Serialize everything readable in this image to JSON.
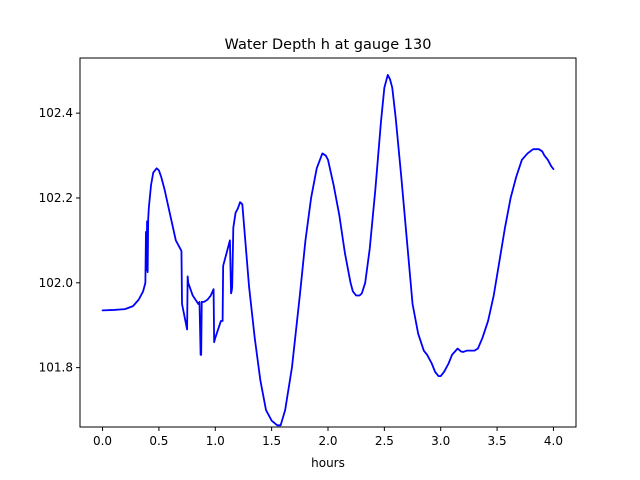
{
  "chart_data": {
    "type": "line",
    "title": "Water Depth h at gauge 130",
    "xlabel": "hours",
    "ylabel": "",
    "xlim": [
      -0.2,
      4.2
    ],
    "ylim": [
      101.66,
      102.53
    ],
    "x_ticks": [
      {
        "value": 0.0,
        "label": "0.0"
      },
      {
        "value": 0.5,
        "label": "0.5"
      },
      {
        "value": 1.0,
        "label": "1.0"
      },
      {
        "value": 1.5,
        "label": "1.5"
      },
      {
        "value": 2.0,
        "label": "2.0"
      },
      {
        "value": 2.5,
        "label": "2.5"
      },
      {
        "value": 3.0,
        "label": "3.0"
      },
      {
        "value": 3.5,
        "label": "3.5"
      },
      {
        "value": 4.0,
        "label": "4.0"
      }
    ],
    "y_ticks": [
      {
        "value": 101.8,
        "label": "101.8"
      },
      {
        "value": 102.0,
        "label": "102.0"
      },
      {
        "value": 102.2,
        "label": "102.2"
      },
      {
        "value": 102.4,
        "label": "102.4"
      }
    ],
    "grid": false,
    "series": [
      {
        "color": "#0000ff",
        "x": [
          0.0,
          0.1,
          0.2,
          0.27,
          0.32,
          0.36,
          0.38,
          0.385,
          0.39,
          0.395,
          0.4,
          0.405,
          0.41,
          0.43,
          0.45,
          0.48,
          0.5,
          0.52,
          0.55,
          0.6,
          0.65,
          0.7,
          0.705,
          0.72,
          0.75,
          0.755,
          0.76,
          0.8,
          0.85,
          0.86,
          0.87,
          0.875,
          0.88,
          0.9,
          0.93,
          0.96,
          0.985,
          0.99,
          1.0,
          1.05,
          1.065,
          1.07,
          1.1,
          1.13,
          1.14,
          1.145,
          1.15,
          1.16,
          1.18,
          1.2,
          1.22,
          1.24,
          1.26,
          1.3,
          1.35,
          1.4,
          1.45,
          1.5,
          1.55,
          1.58,
          1.62,
          1.68,
          1.75,
          1.8,
          1.85,
          1.9,
          1.95,
          1.98,
          2.0,
          2.05,
          2.1,
          2.15,
          2.2,
          2.22,
          2.25,
          2.28,
          2.3,
          2.33,
          2.37,
          2.42,
          2.47,
          2.5,
          2.53,
          2.55,
          2.57,
          2.6,
          2.65,
          2.7,
          2.75,
          2.8,
          2.85,
          2.88,
          2.92,
          2.95,
          2.98,
          3.0,
          3.03,
          3.07,
          3.1,
          3.15,
          3.18,
          3.2,
          3.23,
          3.27,
          3.3,
          3.33,
          3.37,
          3.42,
          3.47,
          3.52,
          3.57,
          3.62,
          3.67,
          3.72,
          3.77,
          3.82,
          3.87,
          3.9,
          3.92,
          3.95,
          3.98,
          4.0
        ],
        "y": [
          101.935,
          101.936,
          101.938,
          101.945,
          101.96,
          101.98,
          102.0,
          102.12,
          102.03,
          102.145,
          102.025,
          102.15,
          102.175,
          102.23,
          102.26,
          102.27,
          102.265,
          102.25,
          102.22,
          102.16,
          102.1,
          102.075,
          101.95,
          101.93,
          101.89,
          102.015,
          102.0,
          101.97,
          101.95,
          101.955,
          101.83,
          101.83,
          101.955,
          101.955,
          101.96,
          101.97,
          101.985,
          101.86,
          101.87,
          101.91,
          101.91,
          102.04,
          102.07,
          102.1,
          101.975,
          101.98,
          101.99,
          102.13,
          102.165,
          102.175,
          102.19,
          102.185,
          102.12,
          101.99,
          101.87,
          101.77,
          101.7,
          101.675,
          101.664,
          101.664,
          101.7,
          101.8,
          101.97,
          102.1,
          102.2,
          102.27,
          102.305,
          102.3,
          102.29,
          102.23,
          102.16,
          102.07,
          102.0,
          101.98,
          101.97,
          101.97,
          101.975,
          102.0,
          102.08,
          102.22,
          102.38,
          102.46,
          102.49,
          102.48,
          102.46,
          102.39,
          102.25,
          102.1,
          101.95,
          101.88,
          101.84,
          101.83,
          101.81,
          101.79,
          101.78,
          101.78,
          101.79,
          101.81,
          101.83,
          101.845,
          101.838,
          101.837,
          101.84,
          101.84,
          101.84,
          101.845,
          101.87,
          101.91,
          101.97,
          102.05,
          102.13,
          102.2,
          102.25,
          102.29,
          102.305,
          102.315,
          102.315,
          102.31,
          102.3,
          102.29,
          102.275,
          102.268
        ]
      }
    ]
  }
}
